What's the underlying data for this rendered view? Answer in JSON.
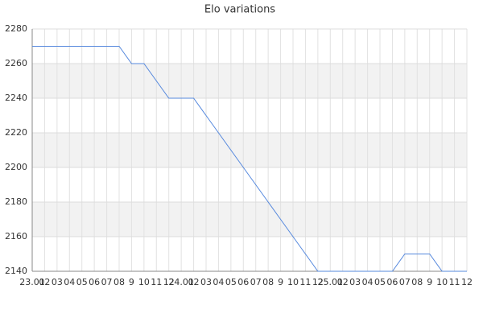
{
  "chart_data": {
    "type": "line",
    "title": "Elo variations",
    "categories": [
      "23.01",
      "02",
      "03",
      "04",
      "05",
      "06",
      "07",
      "08",
      "9",
      "10",
      "11",
      "12",
      "24.01",
      "02",
      "03",
      "04",
      "05",
      "06",
      "07",
      "08",
      "9",
      "10",
      "11",
      "12",
      "25.01",
      "02",
      "03",
      "04",
      "05",
      "06",
      "07",
      "08",
      "9",
      "10",
      "11",
      "12"
    ],
    "values": [
      2270,
      2270,
      2270,
      2270,
      2270,
      2270,
      2270,
      2270,
      2260,
      2260,
      2250,
      2240,
      2240,
      2240,
      2230,
      2220,
      2210,
      2200,
      2190,
      2180,
      2170,
      2160,
      2150,
      2140,
      2140,
      2140,
      2140,
      2140,
      2140,
      2140,
      2150,
      2150,
      2150,
      2140,
      2140,
      2140
    ],
    "color": "#5588dd",
    "ylim": [
      2140,
      2280
    ],
    "yticks": [
      2140,
      2160,
      2180,
      2200,
      2220,
      2240,
      2260,
      2280
    ],
    "grid": true
  }
}
